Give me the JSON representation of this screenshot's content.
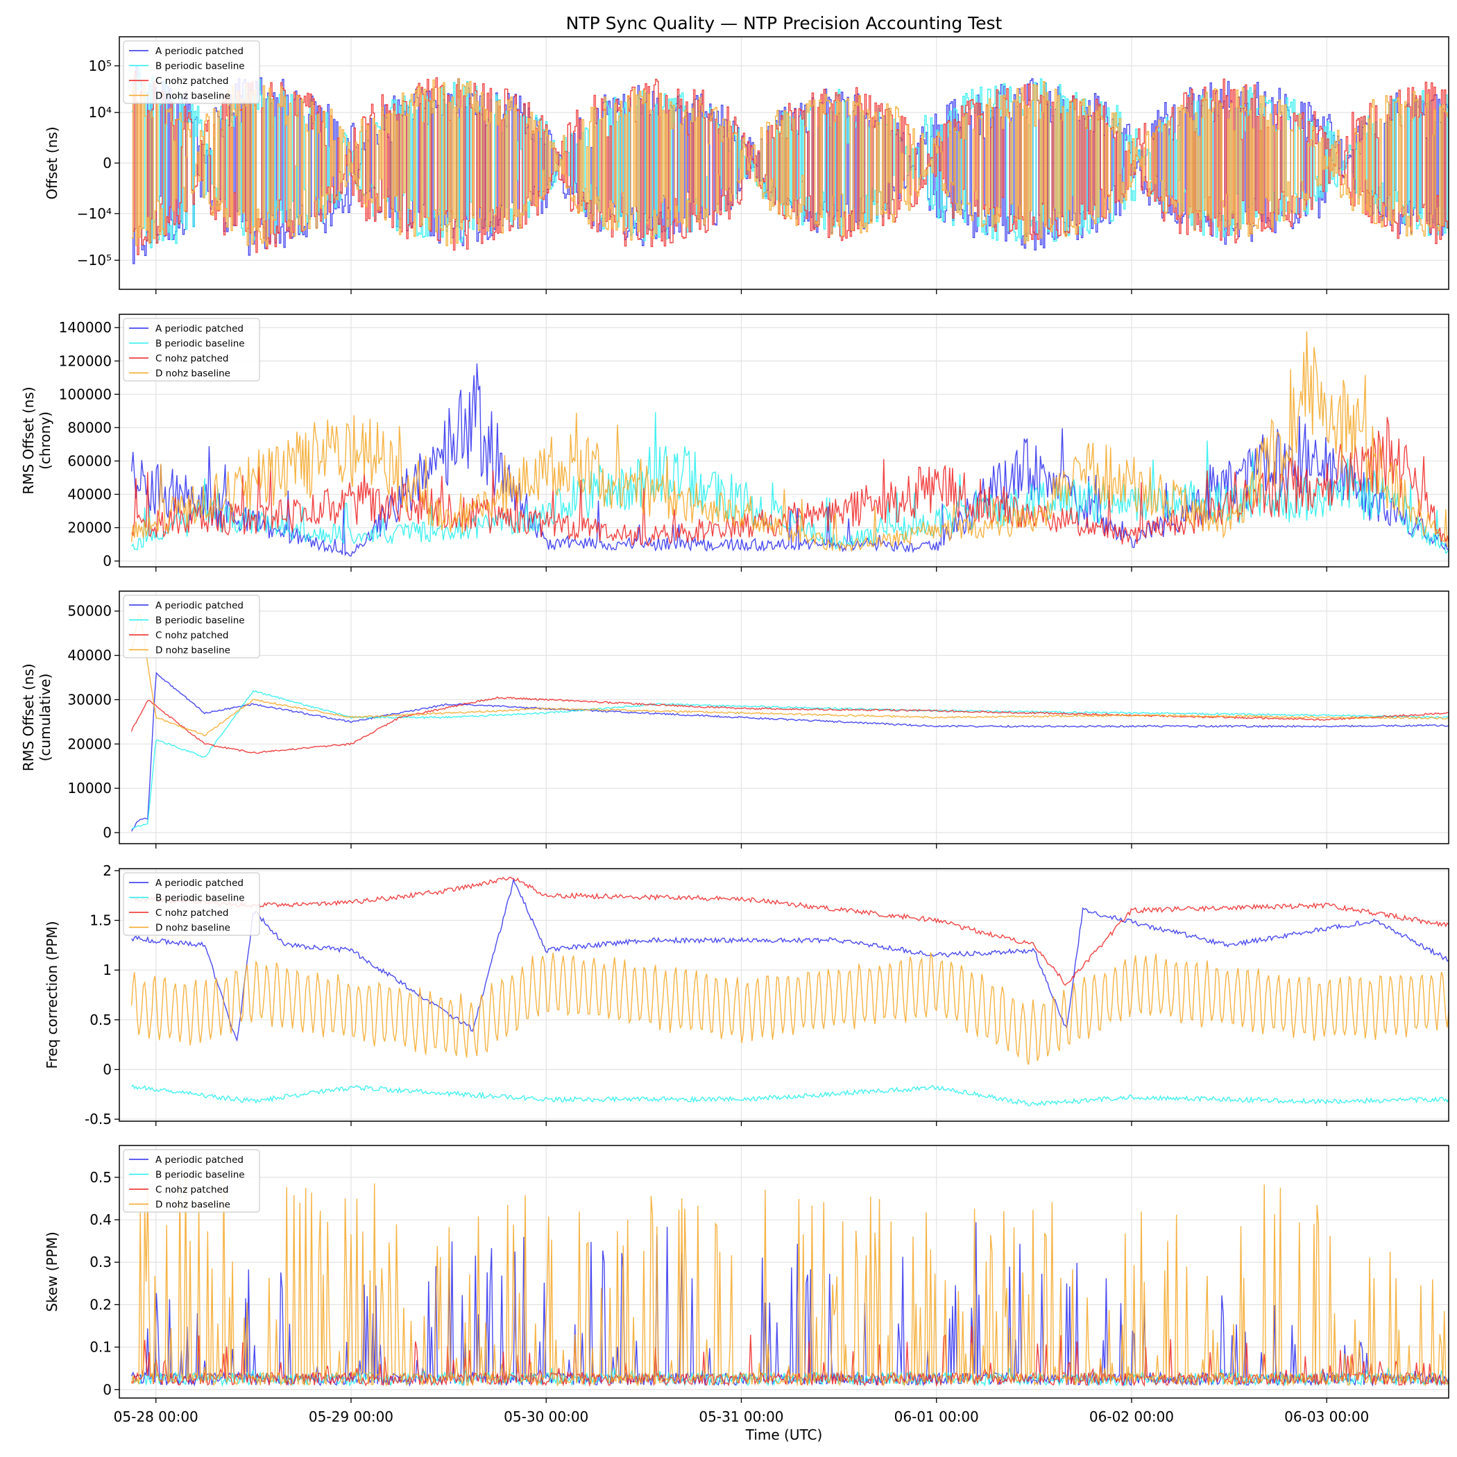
{
  "figure": {
    "title": "NTP Sync Quality — NTP Precision Accounting Test",
    "xlabel": "Time (UTC)"
  },
  "colors": {
    "A periodic patched": "#2a2aee",
    "B periodic baseline": "#22eeee",
    "C nohz patched": "#ee2222",
    "D nohz baseline": "#f5a623"
  },
  "chart_data": [
    {
      "type": "line",
      "ylabel": "Offset (ns)",
      "yscale": "symlog",
      "ylim": [
        -400000,
        400000
      ],
      "yticks": [
        {
          "value": 100000,
          "label": "10⁵"
        },
        {
          "value": 10000,
          "label": "10⁴"
        },
        {
          "value": 0,
          "label": "0"
        },
        {
          "value": -10000,
          "label": "−10⁴"
        },
        {
          "value": -100000,
          "label": "−10⁵"
        }
      ],
      "x_ticks": [
        "05-28 00:00",
        "05-29 00:00",
        "05-30 00:00",
        "05-31 00:00",
        "06-01 00:00",
        "06-02 00:00",
        "06-03 00:00"
      ],
      "x_range": [
        "05-27 19:30",
        "06-03 15:00"
      ],
      "grid": true,
      "legend": "top-left",
      "series": [
        {
          "name": "A periodic patched",
          "x": [
            "05-27 21:00",
            "05-28 12:00",
            "05-29 12:00",
            "05-30 12:00",
            "05-31 12:00",
            "06-01 12:00",
            "06-02 12:00",
            "06-03 12:00"
          ],
          "y": [
            -90000,
            60000,
            -50000,
            40000,
            -30000,
            50000,
            -45000,
            30000
          ]
        },
        {
          "name": "B periodic baseline",
          "x": [
            "05-27 21:00",
            "05-28 12:00",
            "05-29 12:00",
            "05-30 12:00",
            "05-31 12:00",
            "06-01 12:00",
            "06-02 12:00",
            "06-03 12:00"
          ],
          "y": [
            -70000,
            40000,
            -40000,
            30000,
            -25000,
            45000,
            -35000,
            25000
          ]
        },
        {
          "name": "C nohz patched",
          "x": [
            "05-27 21:00",
            "05-28 12:00",
            "05-29 12:00",
            "05-30 12:00",
            "05-31 12:00",
            "06-01 12:00",
            "06-02 12:00",
            "06-03 12:00"
          ],
          "y": [
            -60000,
            50000,
            -55000,
            45000,
            -35000,
            40000,
            -40000,
            35000
          ]
        },
        {
          "name": "D nohz baseline",
          "x": [
            "05-27 21:00",
            "05-28 12:00",
            "05-29 12:00",
            "05-30 12:00",
            "05-31 12:00",
            "06-01 12:00",
            "06-02 12:00",
            "06-03 12:00"
          ],
          "y": [
            -50000,
            45000,
            -45000,
            35000,
            -30000,
            35000,
            -30000,
            30000
          ]
        }
      ]
    },
    {
      "type": "line",
      "ylabel": "RMS Offset (ns)\n(chrony)",
      "ylim": [
        -3500,
        148000
      ],
      "yticks": [
        0,
        20000,
        40000,
        60000,
        80000,
        100000,
        120000,
        140000
      ],
      "grid": true,
      "legend": "top-left",
      "series": [
        {
          "name": "A periodic patched",
          "x": [
            "05-27 21:00",
            "05-29 00:00",
            "05-29 15:00",
            "05-30 00:00",
            "06-01 00:00",
            "06-01 10:00",
            "06-02 00:00",
            "06-02 20:00",
            "06-03 15:00"
          ],
          "y": [
            68000,
            5000,
            117000,
            15000,
            12000,
            80000,
            15000,
            91000,
            12000
          ]
        },
        {
          "name": "B periodic baseline",
          "x": [
            "05-27 21:00",
            "05-28 06:00",
            "05-29 00:00",
            "05-29 20:00",
            "05-30 14:00",
            "05-31 12:00",
            "06-01 12:00",
            "06-02 12:00",
            "06-03 06:00",
            "06-03 15:00"
          ],
          "y": [
            13000,
            38000,
            20000,
            30000,
            78000,
            15000,
            50000,
            48000,
            55000,
            8000
          ]
        },
        {
          "name": "C nohz patched",
          "x": [
            "05-27 21:00",
            "05-28 18:00",
            "05-29 00:00",
            "05-29 06:00",
            "05-30 12:00",
            "05-31 12:00",
            "06-01 00:00",
            "06-02 00:00",
            "06-03 08:00",
            "06-03 15:00"
          ],
          "y": [
            30000,
            38000,
            48000,
            47000,
            20000,
            40000,
            60000,
            20000,
            88000,
            15000
          ]
        },
        {
          "name": "D nohz baseline",
          "x": [
            "05-27 21:00",
            "05-28 09:00",
            "05-29 01:00",
            "05-29 12:00",
            "05-30 02:00",
            "05-31 12:00",
            "06-01 12:00",
            "06-01 18:00",
            "06-02 12:00",
            "06-02 22:00",
            "06-03 15:00"
          ],
          "y": [
            25000,
            58000,
            98000,
            30000,
            81000,
            12000,
            35000,
            80000,
            30000,
            144000,
            10000
          ]
        }
      ]
    },
    {
      "type": "line",
      "ylabel": "RMS Offset (ns)\n(cumulative)",
      "ylim": [
        -2500,
        54500
      ],
      "yticks": [
        0,
        10000,
        20000,
        30000,
        40000,
        50000
      ],
      "grid": true,
      "legend": "top-left",
      "series": [
        {
          "name": "A periodic patched",
          "x": [
            "05-27 21:00",
            "05-27 22:00",
            "05-27 23:00",
            "05-28 00:00",
            "05-28 06:00",
            "05-28 12:00",
            "05-29 00:00",
            "05-29 12:00",
            "05-30 00:00",
            "05-31 00:00",
            "06-01 00:00",
            "06-02 00:00",
            "06-03 00:00",
            "06-03 15:00"
          ],
          "y": [
            500,
            3000,
            3200,
            36000,
            27000,
            29000,
            25000,
            29000,
            28000,
            26000,
            24000,
            24000,
            24000,
            24200
          ]
        },
        {
          "name": "B periodic baseline",
          "x": [
            "05-27 21:00",
            "05-27 23:00",
            "05-28 00:00",
            "05-28 06:00",
            "05-28 12:00",
            "05-29 00:00",
            "05-29 12:00",
            "05-30 00:00",
            "05-30 14:00",
            "05-31 00:00",
            "06-01 00:00",
            "06-02 00:00",
            "06-03 00:00",
            "06-03 15:00"
          ],
          "y": [
            1000,
            2000,
            21000,
            17000,
            32000,
            26000,
            26000,
            27000,
            29000,
            28500,
            27500,
            27000,
            26500,
            26000
          ]
        },
        {
          "name": "C nohz patched",
          "x": [
            "05-27 21:00",
            "05-27 23:00",
            "05-28 06:00",
            "05-28 12:00",
            "05-29 00:00",
            "05-29 06:00",
            "05-29 18:00",
            "05-30 00:00",
            "05-31 00:00",
            "06-01 00:00",
            "06-02 00:00",
            "06-03 00:00",
            "06-03 15:00"
          ],
          "y": [
            23000,
            30000,
            20000,
            18000,
            20000,
            26000,
            30500,
            30000,
            28000,
            27500,
            26500,
            25500,
            27000
          ]
        },
        {
          "name": "D nohz baseline",
          "x": [
            "05-27 21:00",
            "05-27 22:00",
            "05-28 00:00",
            "05-28 06:00",
            "05-28 12:00",
            "05-29 00:00",
            "05-29 12:00",
            "05-30 00:00",
            "05-31 00:00",
            "06-01 00:00",
            "06-02 00:00",
            "06-03 00:00",
            "06-03 15:00"
          ],
          "y": [
            41000,
            50000,
            26000,
            22000,
            30000,
            26000,
            27000,
            28000,
            27000,
            26000,
            26500,
            26000,
            25800
          ]
        }
      ]
    },
    {
      "type": "line",
      "ylabel": "Freq correction (PPM)",
      "ylim": [
        -0.52,
        2.02
      ],
      "yticks": [
        -0.5,
        0.0,
        0.5,
        1.0,
        1.5,
        2.0
      ],
      "grid": true,
      "legend": "top-left",
      "series": [
        {
          "name": "A periodic patched",
          "x": [
            "05-27 21:00",
            "05-28 06:00",
            "05-28 10:00",
            "05-28 12:00",
            "05-28 16:00",
            "05-29 00:00",
            "05-29 15:00",
            "05-29 20:00",
            "05-30 00:00",
            "05-30 12:00",
            "05-31 12:00",
            "06-01 00:00",
            "06-01 12:00",
            "06-01 16:00",
            "06-01 18:00",
            "06-02 12:00",
            "06-03 06:00",
            "06-03 15:00"
          ],
          "y": [
            1.32,
            1.25,
            0.27,
            1.6,
            1.25,
            1.2,
            0.4,
            1.9,
            1.2,
            1.3,
            1.3,
            1.15,
            1.2,
            0.4,
            1.6,
            1.25,
            1.5,
            1.1
          ]
        },
        {
          "name": "B periodic baseline",
          "x": [
            "05-27 21:00",
            "05-28 12:00",
            "05-29 00:00",
            "05-30 00:00",
            "05-31 00:00",
            "06-01 00:00",
            "06-01 12:00",
            "06-02 00:00",
            "06-03 00:00",
            "06-03 15:00"
          ],
          "y": [
            -0.17,
            -0.32,
            -0.18,
            -0.3,
            -0.3,
            -0.18,
            -0.35,
            -0.28,
            -0.32,
            -0.3
          ]
        },
        {
          "name": "C nohz patched",
          "x": [
            "05-27 21:00",
            "05-28 12:00",
            "05-29 00:00",
            "05-29 12:00",
            "05-29 20:00",
            "05-30 00:00",
            "05-31 00:00",
            "06-01 00:00",
            "06-01 12:00",
            "06-01 16:00",
            "06-02 00:00",
            "06-03 00:00",
            "06-03 15:00"
          ],
          "y": [
            1.72,
            1.65,
            1.68,
            1.8,
            1.93,
            1.75,
            1.72,
            1.5,
            1.25,
            0.85,
            1.6,
            1.65,
            1.45
          ]
        },
        {
          "name": "D nohz baseline",
          "x": [
            "05-27 21:00",
            "05-28 06:00",
            "05-28 12:00",
            "05-29 00:00",
            "05-29 15:00",
            "05-30 00:00",
            "05-31 00:00",
            "06-01 00:00",
            "06-01 12:00",
            "06-02 00:00",
            "06-03 00:00",
            "06-03 15:00"
          ],
          "y": [
            0.58,
            0.45,
            0.9,
            0.5,
            0.13,
            1.1,
            0.5,
            1.0,
            0.0,
            1.0,
            0.5,
            0.7
          ]
        }
      ]
    },
    {
      "type": "line",
      "ylabel": "Skew (PPM)",
      "ylim": [
        -0.02,
        0.575
      ],
      "yticks": [
        0.0,
        0.1,
        0.2,
        0.3,
        0.4,
        0.5
      ],
      "grid": true,
      "legend": "top-left",
      "series": [
        {
          "name": "A periodic patched",
          "x": [
            "05-27 21:00",
            "05-28 12:00",
            "05-29 15:00",
            "05-29 18:00",
            "06-01 15:00",
            "06-03 15:00"
          ],
          "y": [
            0.2,
            0.25,
            0.36,
            0.39,
            0.36,
            0.01
          ]
        },
        {
          "name": "B periodic baseline",
          "x": [
            "05-27 21:00",
            "05-29 00:00",
            "05-31 00:00",
            "06-02 00:00",
            "06-03 15:00"
          ],
          "y": [
            0.05,
            0.01,
            0.02,
            0.01,
            0.02
          ]
        },
        {
          "name": "C nohz patched",
          "x": [
            "05-27 21:00",
            "05-29 00:00",
            "05-31 00:00",
            "06-02 00:00",
            "06-03 15:00"
          ],
          "y": [
            0.1,
            0.08,
            0.1,
            0.12,
            0.05
          ]
        },
        {
          "name": "D nohz baseline",
          "x": [
            "05-27 21:00",
            "05-27 22:00",
            "05-29 12:00",
            "06-02 00:00",
            "06-02 18:00",
            "06-03 15:00"
          ],
          "y": [
            0.43,
            0.5,
            0.45,
            0.43,
            0.5,
            0.26
          ]
        }
      ]
    }
  ]
}
